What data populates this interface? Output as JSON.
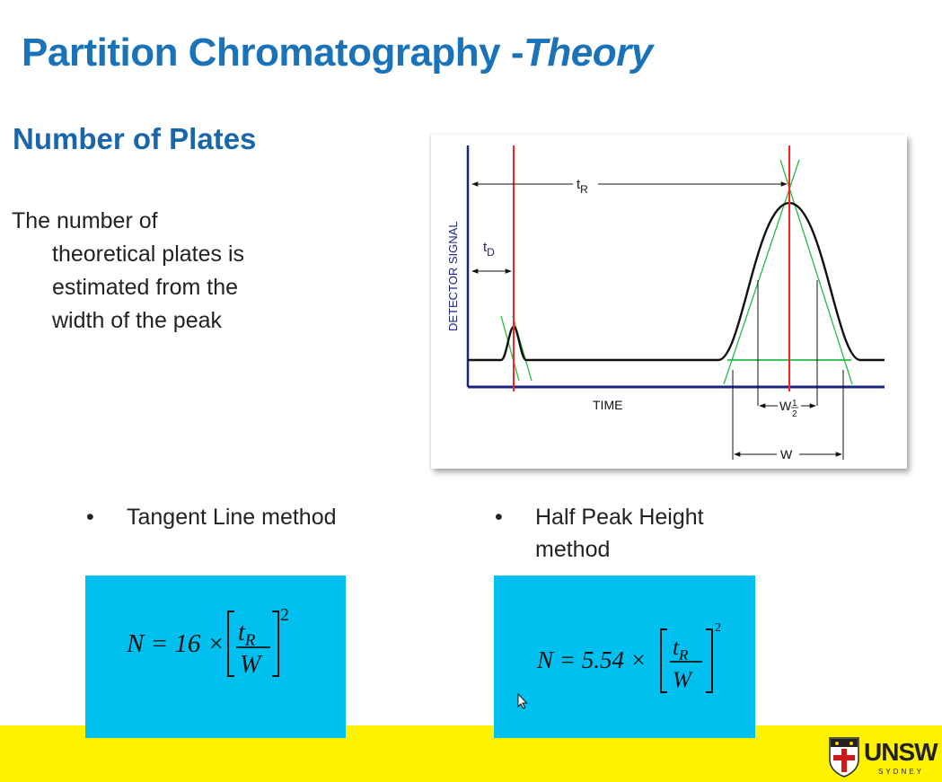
{
  "slide": {
    "title_main": "Partition Chromatography -",
    "title_italic": "Theory",
    "subtitle": "Number of Plates",
    "body_line1": "The number of",
    "body_line2": "theoretical plates is",
    "body_line3": "estimated from the",
    "body_line4": "width of the peak"
  },
  "diagram": {
    "y_axis_label": "DETECTOR SIGNAL",
    "x_axis_label": "TIME",
    "t_R": "t",
    "t_R_sub": "R",
    "t_D": "t",
    "t_D_sub": "D",
    "w_half": "W",
    "w_half_num": "1",
    "w_half_den": "2",
    "w": "W",
    "colors": {
      "peak": "#111111",
      "marker": "#ff2020",
      "tangent": "#22bb44",
      "axis": "#1a237e"
    }
  },
  "methods": [
    {
      "bullet": "•",
      "label": "Tangent Line method",
      "formula_lhs": "N = 16 ×",
      "formula_num": "t",
      "formula_num_sub": "R",
      "formula_den": "W",
      "formula_exp": "2"
    },
    {
      "bullet": "•",
      "label": "Half Peak Height method",
      "formula_lhs": "N = 5.54 ×",
      "formula_num": "t",
      "formula_num_sub": "R",
      "formula_den": "W",
      "formula_exp": "2"
    }
  ],
  "logo": {
    "name": "UNSW",
    "city": "SYDNEY"
  },
  "colors": {
    "title": "#1a73b8",
    "formula_box": "#00c0f0",
    "footer": "#fff200"
  }
}
